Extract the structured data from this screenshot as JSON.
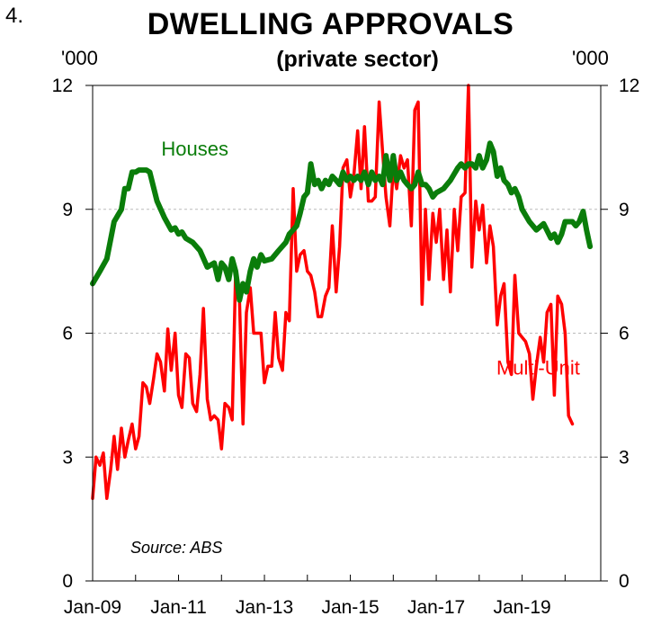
{
  "figure_number": "4.",
  "chart_data": {
    "type": "line",
    "title": "DWELLING APPROVALS",
    "subtitle": "(private sector)",
    "ylabel_left": "'000",
    "ylabel_right": "'000",
    "ylim": [
      0,
      12
    ],
    "yticks": [
      "0",
      "3",
      "6",
      "9",
      "12"
    ],
    "xlim": [
      2009.0,
      2020.83
    ],
    "xticks": [
      {
        "label": "Jan-09",
        "x": 2009.0
      },
      {
        "label": "Jan-11",
        "x": 2011.0
      },
      {
        "label": "Jan-13",
        "x": 2013.0
      },
      {
        "label": "Jan-15",
        "x": 2015.0
      },
      {
        "label": "Jan-17",
        "x": 2017.0
      },
      {
        "label": "Jan-19",
        "x": 2019.0
      }
    ],
    "grid": "horizontal dashed",
    "source": "Source: ABS",
    "colors": {
      "houses": "#0a7d0a",
      "multi_unit": "#ff0000",
      "grid": "#bbbbbb"
    },
    "series": [
      {
        "name": "Houses",
        "label_at": [
          2010.6,
          10.3
        ],
        "points": [
          [
            2009.0,
            7.2
          ],
          [
            2009.17,
            7.5
          ],
          [
            2009.33,
            7.8
          ],
          [
            2009.5,
            8.7
          ],
          [
            2009.67,
            9.0
          ],
          [
            2009.75,
            9.5
          ],
          [
            2009.83,
            9.5
          ],
          [
            2009.92,
            9.9
          ],
          [
            2010.0,
            9.9
          ],
          [
            2010.08,
            9.95
          ],
          [
            2010.25,
            9.95
          ],
          [
            2010.33,
            9.9
          ],
          [
            2010.5,
            9.2
          ],
          [
            2010.67,
            8.8
          ],
          [
            2010.83,
            8.5
          ],
          [
            2010.92,
            8.55
          ],
          [
            2011.0,
            8.4
          ],
          [
            2011.08,
            8.45
          ],
          [
            2011.17,
            8.3
          ],
          [
            2011.33,
            8.2
          ],
          [
            2011.5,
            8.0
          ],
          [
            2011.67,
            7.6
          ],
          [
            2011.83,
            7.7
          ],
          [
            2011.92,
            7.3
          ],
          [
            2012.0,
            7.7
          ],
          [
            2012.08,
            7.6
          ],
          [
            2012.17,
            7.3
          ],
          [
            2012.25,
            7.8
          ],
          [
            2012.33,
            7.5
          ],
          [
            2012.42,
            6.8
          ],
          [
            2012.5,
            7.2
          ],
          [
            2012.58,
            7.0
          ],
          [
            2012.67,
            7.5
          ],
          [
            2012.75,
            7.8
          ],
          [
            2012.83,
            7.6
          ],
          [
            2012.92,
            7.9
          ],
          [
            2013.0,
            7.75
          ],
          [
            2013.17,
            7.8
          ],
          [
            2013.33,
            8.0
          ],
          [
            2013.5,
            8.2
          ],
          [
            2013.58,
            8.4
          ],
          [
            2013.67,
            8.5
          ],
          [
            2013.75,
            8.6
          ],
          [
            2013.83,
            8.9
          ],
          [
            2013.92,
            9.3
          ],
          [
            2014.0,
            9.4
          ],
          [
            2014.08,
            10.1
          ],
          [
            2014.17,
            9.6
          ],
          [
            2014.25,
            9.7
          ],
          [
            2014.33,
            9.5
          ],
          [
            2014.42,
            9.7
          ],
          [
            2014.5,
            9.6
          ],
          [
            2014.58,
            9.8
          ],
          [
            2014.67,
            9.7
          ],
          [
            2014.75,
            9.6
          ],
          [
            2014.83,
            9.9
          ],
          [
            2014.92,
            9.7
          ],
          [
            2015.0,
            9.8
          ],
          [
            2015.08,
            9.7
          ],
          [
            2015.17,
            9.8
          ],
          [
            2015.25,
            9.7
          ],
          [
            2015.33,
            9.9
          ],
          [
            2015.42,
            9.6
          ],
          [
            2015.5,
            9.9
          ],
          [
            2015.58,
            9.7
          ],
          [
            2015.67,
            9.8
          ],
          [
            2015.75,
            9.6
          ],
          [
            2015.83,
            10.3
          ],
          [
            2015.92,
            9.7
          ],
          [
            2016.0,
            10.3
          ],
          [
            2016.08,
            9.7
          ],
          [
            2016.17,
            9.9
          ],
          [
            2016.25,
            9.7
          ],
          [
            2016.33,
            9.6
          ],
          [
            2016.42,
            9.5
          ],
          [
            2016.5,
            9.6
          ],
          [
            2016.58,
            9.9
          ],
          [
            2016.67,
            9.6
          ],
          [
            2016.75,
            9.6
          ],
          [
            2016.83,
            9.5
          ],
          [
            2016.92,
            9.3
          ],
          [
            2017.0,
            9.4
          ],
          [
            2017.17,
            9.5
          ],
          [
            2017.33,
            9.7
          ],
          [
            2017.5,
            10.0
          ],
          [
            2017.58,
            10.1
          ],
          [
            2017.67,
            10.0
          ],
          [
            2017.75,
            10.1
          ],
          [
            2017.83,
            10.1
          ],
          [
            2017.92,
            10.0
          ],
          [
            2018.0,
            10.3
          ],
          [
            2018.08,
            10.0
          ],
          [
            2018.17,
            10.2
          ],
          [
            2018.25,
            10.6
          ],
          [
            2018.33,
            10.4
          ],
          [
            2018.42,
            9.8
          ],
          [
            2018.5,
            10.0
          ],
          [
            2018.58,
            9.7
          ],
          [
            2018.67,
            9.6
          ],
          [
            2018.75,
            9.4
          ],
          [
            2018.83,
            9.5
          ],
          [
            2018.92,
            9.3
          ],
          [
            2019.0,
            9.0
          ],
          [
            2019.17,
            8.7
          ],
          [
            2019.33,
            8.5
          ],
          [
            2019.5,
            8.65
          ],
          [
            2019.67,
            8.3
          ],
          [
            2019.75,
            8.4
          ],
          [
            2019.83,
            8.2
          ],
          [
            2019.92,
            8.4
          ],
          [
            2020.0,
            8.7
          ],
          [
            2020.17,
            8.7
          ],
          [
            2020.25,
            8.6
          ],
          [
            2020.33,
            8.7
          ],
          [
            2020.42,
            8.95
          ],
          [
            2020.5,
            8.5
          ],
          [
            2020.58,
            8.1
          ]
        ]
      },
      {
        "name": "Multi-Unit",
        "label_at": [
          2018.4,
          5.0
        ],
        "points": [
          [
            2009.0,
            2.0
          ],
          [
            2009.08,
            3.0
          ],
          [
            2009.17,
            2.8
          ],
          [
            2009.25,
            3.1
          ],
          [
            2009.33,
            2.0
          ],
          [
            2009.42,
            2.7
          ],
          [
            2009.5,
            3.5
          ],
          [
            2009.58,
            2.7
          ],
          [
            2009.67,
            3.7
          ],
          [
            2009.75,
            3.0
          ],
          [
            2009.83,
            3.4
          ],
          [
            2009.92,
            3.8
          ],
          [
            2010.0,
            3.2
          ],
          [
            2010.08,
            3.5
          ],
          [
            2010.17,
            4.8
          ],
          [
            2010.25,
            4.7
          ],
          [
            2010.33,
            4.3
          ],
          [
            2010.42,
            4.9
          ],
          [
            2010.5,
            5.5
          ],
          [
            2010.58,
            5.3
          ],
          [
            2010.67,
            4.6
          ],
          [
            2010.75,
            6.1
          ],
          [
            2010.83,
            5.1
          ],
          [
            2010.92,
            6.0
          ],
          [
            2011.0,
            4.5
          ],
          [
            2011.08,
            4.2
          ],
          [
            2011.17,
            5.5
          ],
          [
            2011.25,
            5.4
          ],
          [
            2011.33,
            4.3
          ],
          [
            2011.42,
            4.1
          ],
          [
            2011.5,
            5.0
          ],
          [
            2011.58,
            6.6
          ],
          [
            2011.67,
            4.4
          ],
          [
            2011.75,
            3.9
          ],
          [
            2011.83,
            4.0
          ],
          [
            2011.92,
            3.9
          ],
          [
            2012.0,
            3.2
          ],
          [
            2012.08,
            4.3
          ],
          [
            2012.17,
            4.2
          ],
          [
            2012.25,
            3.9
          ],
          [
            2012.33,
            7.5
          ],
          [
            2012.42,
            6.8
          ],
          [
            2012.5,
            3.8
          ],
          [
            2012.58,
            6.5
          ],
          [
            2012.67,
            7.1
          ],
          [
            2012.75,
            6.0
          ],
          [
            2012.83,
            6.0
          ],
          [
            2012.92,
            6.0
          ],
          [
            2013.0,
            4.8
          ],
          [
            2013.08,
            5.2
          ],
          [
            2013.17,
            5.2
          ],
          [
            2013.25,
            6.5
          ],
          [
            2013.33,
            5.4
          ],
          [
            2013.42,
            5.1
          ],
          [
            2013.5,
            6.5
          ],
          [
            2013.58,
            6.3
          ],
          [
            2013.67,
            9.5
          ],
          [
            2013.75,
            7.5
          ],
          [
            2013.83,
            7.9
          ],
          [
            2013.92,
            8.0
          ],
          [
            2014.0,
            7.5
          ],
          [
            2014.08,
            7.4
          ],
          [
            2014.17,
            7.0
          ],
          [
            2014.25,
            6.4
          ],
          [
            2014.33,
            6.4
          ],
          [
            2014.42,
            6.9
          ],
          [
            2014.5,
            7.1
          ],
          [
            2014.58,
            8.6
          ],
          [
            2014.67,
            7.0
          ],
          [
            2014.75,
            8.1
          ],
          [
            2014.83,
            10.0
          ],
          [
            2014.92,
            10.2
          ],
          [
            2015.0,
            9.3
          ],
          [
            2015.08,
            9.8
          ],
          [
            2015.17,
            10.9
          ],
          [
            2015.25,
            9.5
          ],
          [
            2015.33,
            11.0
          ],
          [
            2015.42,
            9.2
          ],
          [
            2015.5,
            9.2
          ],
          [
            2015.58,
            9.3
          ],
          [
            2015.67,
            11.6
          ],
          [
            2015.75,
            10.4
          ],
          [
            2015.83,
            9.3
          ],
          [
            2015.92,
            8.6
          ],
          [
            2016.0,
            10.0
          ],
          [
            2016.08,
            9.5
          ],
          [
            2016.17,
            10.3
          ],
          [
            2016.25,
            10.0
          ],
          [
            2016.33,
            10.2
          ],
          [
            2016.42,
            8.6
          ],
          [
            2016.5,
            11.4
          ],
          [
            2016.58,
            11.6
          ],
          [
            2016.67,
            6.7
          ],
          [
            2016.75,
            9.0
          ],
          [
            2016.83,
            7.3
          ],
          [
            2016.92,
            8.9
          ],
          [
            2017.0,
            8.2
          ],
          [
            2017.08,
            9.0
          ],
          [
            2017.17,
            7.3
          ],
          [
            2017.25,
            8.5
          ],
          [
            2017.33,
            7.0
          ],
          [
            2017.42,
            9.0
          ],
          [
            2017.5,
            8.0
          ],
          [
            2017.58,
            9.3
          ],
          [
            2017.67,
            9.4
          ],
          [
            2017.75,
            12.0
          ],
          [
            2017.83,
            7.6
          ],
          [
            2017.92,
            9.2
          ],
          [
            2018.0,
            8.5
          ],
          [
            2018.08,
            9.1
          ],
          [
            2018.17,
            7.7
          ],
          [
            2018.25,
            8.6
          ],
          [
            2018.33,
            8.1
          ],
          [
            2018.42,
            6.2
          ],
          [
            2018.5,
            6.9
          ],
          [
            2018.58,
            7.2
          ],
          [
            2018.67,
            5.3
          ],
          [
            2018.75,
            5.0
          ],
          [
            2018.83,
            7.4
          ],
          [
            2018.92,
            6.0
          ],
          [
            2019.0,
            5.9
          ],
          [
            2019.08,
            5.8
          ],
          [
            2019.17,
            5.5
          ],
          [
            2019.25,
            4.4
          ],
          [
            2019.33,
            5.2
          ],
          [
            2019.42,
            5.9
          ],
          [
            2019.5,
            5.3
          ],
          [
            2019.58,
            6.5
          ],
          [
            2019.67,
            6.7
          ],
          [
            2019.75,
            4.5
          ],
          [
            2019.83,
            6.9
          ],
          [
            2019.92,
            6.7
          ],
          [
            2020.0,
            6.0
          ],
          [
            2020.08,
            4.0
          ],
          [
            2020.17,
            3.8
          ]
        ]
      }
    ]
  }
}
